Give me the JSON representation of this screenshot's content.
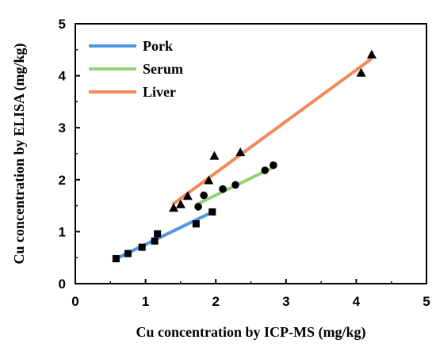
{
  "chart_data": {
    "type": "scatter",
    "xlabel": "Cu concentration by ICP-MS (mg/kg)",
    "ylabel": "Cu concentration by ELISA (mg/kg)",
    "xlim": [
      0,
      5
    ],
    "ylim": [
      0,
      5
    ],
    "xticks": [
      "0",
      "1",
      "2",
      "3",
      "4",
      "5"
    ],
    "yticks": [
      "0",
      "1",
      "2",
      "3",
      "4",
      "5"
    ],
    "legend_position": "top-left",
    "series": [
      {
        "name": "Pork",
        "color": "#4f97e0",
        "marker": "square",
        "points": [
          [
            0.58,
            0.48
          ],
          [
            0.75,
            0.58
          ],
          [
            0.95,
            0.7
          ],
          [
            1.13,
            0.82
          ],
          [
            1.17,
            0.96
          ],
          [
            1.72,
            1.15
          ],
          [
            1.95,
            1.38
          ]
        ],
        "fit": [
          [
            0.55,
            0.46
          ],
          [
            1.97,
            1.39
          ]
        ]
      },
      {
        "name": "Serum",
        "color": "#93d27a",
        "marker": "circle",
        "points": [
          [
            1.75,
            1.48
          ],
          [
            1.83,
            1.7
          ],
          [
            2.1,
            1.82
          ],
          [
            2.28,
            1.9
          ],
          [
            2.7,
            2.18
          ],
          [
            2.82,
            2.28
          ]
        ],
        "fit": [
          [
            1.72,
            1.52
          ],
          [
            2.87,
            2.27
          ]
        ]
      },
      {
        "name": "Liver",
        "color": "#f08a5d",
        "marker": "triangle",
        "points": [
          [
            1.4,
            1.45
          ],
          [
            1.5,
            1.52
          ],
          [
            1.6,
            1.68
          ],
          [
            1.9,
            1.98
          ],
          [
            1.98,
            2.45
          ],
          [
            2.35,
            2.52
          ],
          [
            4.07,
            4.05
          ],
          [
            4.22,
            4.4
          ]
        ],
        "fit": [
          [
            1.38,
            1.52
          ],
          [
            4.22,
            4.33
          ]
        ]
      }
    ]
  }
}
